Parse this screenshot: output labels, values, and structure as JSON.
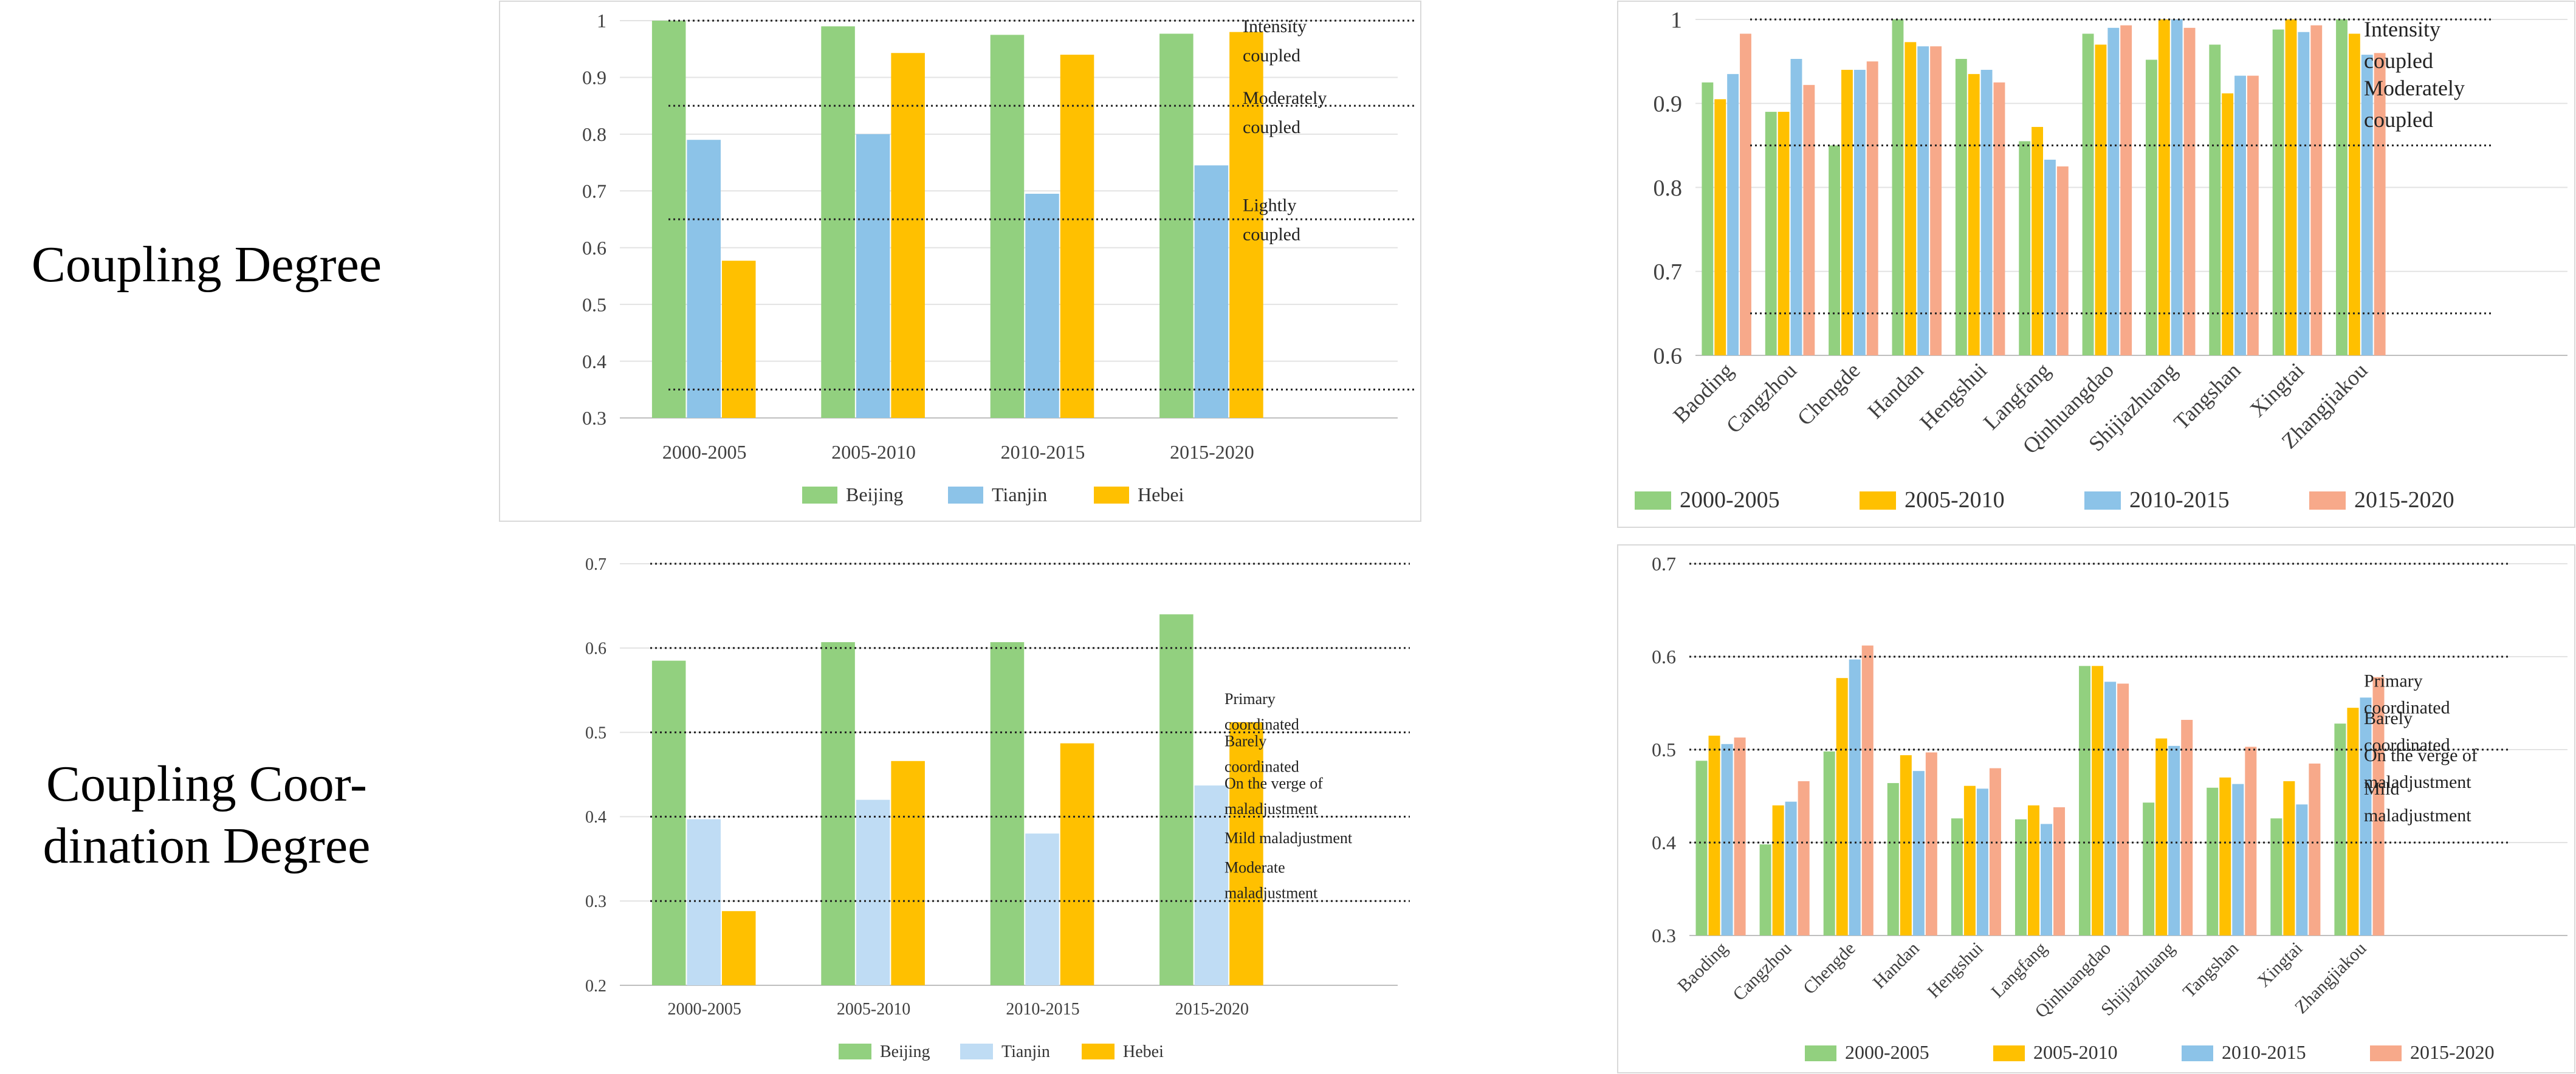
{
  "row_labels": {
    "coupling": "Coupling Degree",
    "coordination_line1": "Coupling Coor-",
    "coordination_line2": "dination Degree"
  },
  "colors": {
    "green": "#92D07F",
    "blue": "#8CC3E8",
    "light_blue": "#BFDCF4",
    "yellow": "#FFC000",
    "salmon": "#F7A98A"
  },
  "chart_data": [
    {
      "id": "tl",
      "type": "bar",
      "title": "",
      "categories": [
        "2000-2005",
        "2005-2010",
        "2010-2015",
        "2015-2020"
      ],
      "series": [
        {
          "name": "Beijing",
          "color": "#92D07F",
          "values": [
            1.0,
            0.99,
            0.975,
            0.977
          ]
        },
        {
          "name": "Tianjin",
          "color": "#8CC3E8",
          "values": [
            0.79,
            0.8,
            0.695,
            0.745
          ]
        },
        {
          "name": "Hebei",
          "color": "#FFC000",
          "values": [
            0.577,
            0.943,
            0.94,
            0.98
          ]
        }
      ],
      "ylim": [
        0.3,
        1
      ],
      "yticks": [
        "0.3",
        "0.4",
        "0.5",
        "0.6",
        "0.7",
        "0.8",
        "0.9",
        "1"
      ],
      "thresholds": [
        1.0,
        0.85,
        0.65,
        0.35
      ],
      "zones": [
        {
          "lines": [
            "Intensity",
            "coupled"
          ]
        },
        {
          "lines": [
            "Moderately",
            "coupled"
          ]
        },
        {
          "lines": [
            "Lightly",
            "coupled"
          ]
        }
      ],
      "legend": [
        "Beijing",
        "Tianjin",
        "Hebei"
      ]
    },
    {
      "id": "tr",
      "type": "bar",
      "title": "",
      "categories": [
        "Baoding",
        "Cangzhou",
        "Chengde",
        "Handan",
        "Hengshui",
        "Langfang",
        "Qinhuangdao",
        "Shijiazhuang",
        "Tangshan",
        "Xingtai",
        "Zhangjiakou"
      ],
      "series": [
        {
          "name": "2000-2005",
          "color": "#92D07F",
          "values": [
            0.925,
            0.89,
            0.85,
            1.0,
            0.953,
            0.855,
            0.983,
            0.952,
            0.97,
            0.988,
            1.0
          ]
        },
        {
          "name": "2005-2010",
          "color": "#FFC000",
          "values": [
            0.905,
            0.89,
            0.94,
            0.973,
            0.935,
            0.872,
            0.97,
            1.0,
            0.912,
            1.0,
            0.983
          ]
        },
        {
          "name": "2010-2015",
          "color": "#8CC3E8",
          "values": [
            0.935,
            0.953,
            0.94,
            0.968,
            0.94,
            0.833,
            0.99,
            1.0,
            0.933,
            0.985,
            0.958
          ]
        },
        {
          "name": "2015-2020",
          "color": "#F7A98A",
          "values": [
            0.983,
            0.922,
            0.95,
            0.968,
            0.925,
            0.825,
            0.993,
            0.99,
            0.933,
            0.993,
            0.96
          ]
        }
      ],
      "ylim": [
        0.6,
        1
      ],
      "yticks": [
        "0.6",
        "0.7",
        "0.8",
        "0.9",
        "1"
      ],
      "thresholds": [
        1.0,
        0.85,
        0.65
      ],
      "zones": [
        {
          "lines": [
            "Intensity",
            "coupled"
          ]
        },
        {
          "lines": [
            "Moderately",
            "coupled"
          ]
        }
      ],
      "legend": [
        "2000-2005",
        "2005-2010",
        "2010-2015",
        "2015-2020"
      ]
    },
    {
      "id": "bl",
      "type": "bar",
      "title": "",
      "categories": [
        "2000-2005",
        "2005-2010",
        "2010-2015",
        "2015-2020"
      ],
      "series": [
        {
          "name": "Beijing",
          "color": "#92D07F",
          "values": [
            0.585,
            0.607,
            0.607,
            0.64
          ]
        },
        {
          "name": "Tianjin",
          "color": "#BFDCF4",
          "values": [
            0.397,
            0.42,
            0.38,
            0.437
          ]
        },
        {
          "name": "Hebei",
          "color": "#FFC000",
          "values": [
            0.288,
            0.466,
            0.487,
            0.512
          ]
        }
      ],
      "ylim": [
        0.2,
        0.7
      ],
      "yticks": [
        "0.2",
        "0.3",
        "0.4",
        "0.5",
        "0.6",
        "0.7"
      ],
      "thresholds": [
        0.7,
        0.6,
        0.5,
        0.4,
        0.3
      ],
      "zones": [
        {
          "lines": [
            "Primary",
            "coordinated"
          ]
        },
        {
          "lines": [
            "Barely",
            "coordinated"
          ]
        },
        {
          "lines": [
            "On the verge of",
            "maladjustment"
          ]
        },
        {
          "lines": [
            "Mild maladjustment"
          ]
        },
        {
          "lines": [
            "Moderate",
            "maladjustment"
          ]
        }
      ],
      "legend": [
        "Beijing",
        "Tianjin",
        "Hebei"
      ]
    },
    {
      "id": "br",
      "type": "bar",
      "title": "",
      "categories": [
        "Baoding",
        "Cangzhou",
        "Chengde",
        "Handan",
        "Hengshui",
        "Langfang",
        "Qinhuangdao",
        "Shijiazhuang",
        "Tangshan",
        "Xingtai",
        "Zhangjiakou"
      ],
      "series": [
        {
          "name": "2000-2005",
          "color": "#92D07F",
          "values": [
            0.488,
            0.398,
            0.498,
            0.464,
            0.426,
            0.425,
            0.59,
            0.443,
            0.459,
            0.426,
            0.528
          ]
        },
        {
          "name": "2005-2010",
          "color": "#FFC000",
          "values": [
            0.515,
            0.44,
            0.577,
            0.494,
            0.461,
            0.44,
            0.59,
            0.512,
            0.47,
            0.466,
            0.545
          ]
        },
        {
          "name": "2010-2015",
          "color": "#8CC3E8",
          "values": [
            0.506,
            0.444,
            0.597,
            0.477,
            0.458,
            0.42,
            0.573,
            0.504,
            0.463,
            0.441,
            0.556
          ]
        },
        {
          "name": "2015-2020",
          "color": "#F7A98A",
          "values": [
            0.513,
            0.466,
            0.612,
            0.497,
            0.48,
            0.438,
            0.571,
            0.532,
            0.503,
            0.485,
            0.578
          ]
        }
      ],
      "ylim": [
        0.3,
        0.7
      ],
      "yticks": [
        "0.3",
        "0.4",
        "0.5",
        "0.6",
        "0.7"
      ],
      "thresholds": [
        0.7,
        0.6,
        0.5,
        0.4
      ],
      "zones": [
        {
          "lines": [
            "Primary",
            "coordinated"
          ]
        },
        {
          "lines": [
            "Barely",
            "coordinated"
          ]
        },
        {
          "lines": [
            "On the verge of",
            "maladjustment"
          ]
        },
        {
          "lines": [
            "Mild",
            "maladjustment"
          ]
        }
      ],
      "legend": [
        "2000-2005",
        "2005-2010",
        "2010-2015",
        "2015-2020"
      ]
    }
  ]
}
